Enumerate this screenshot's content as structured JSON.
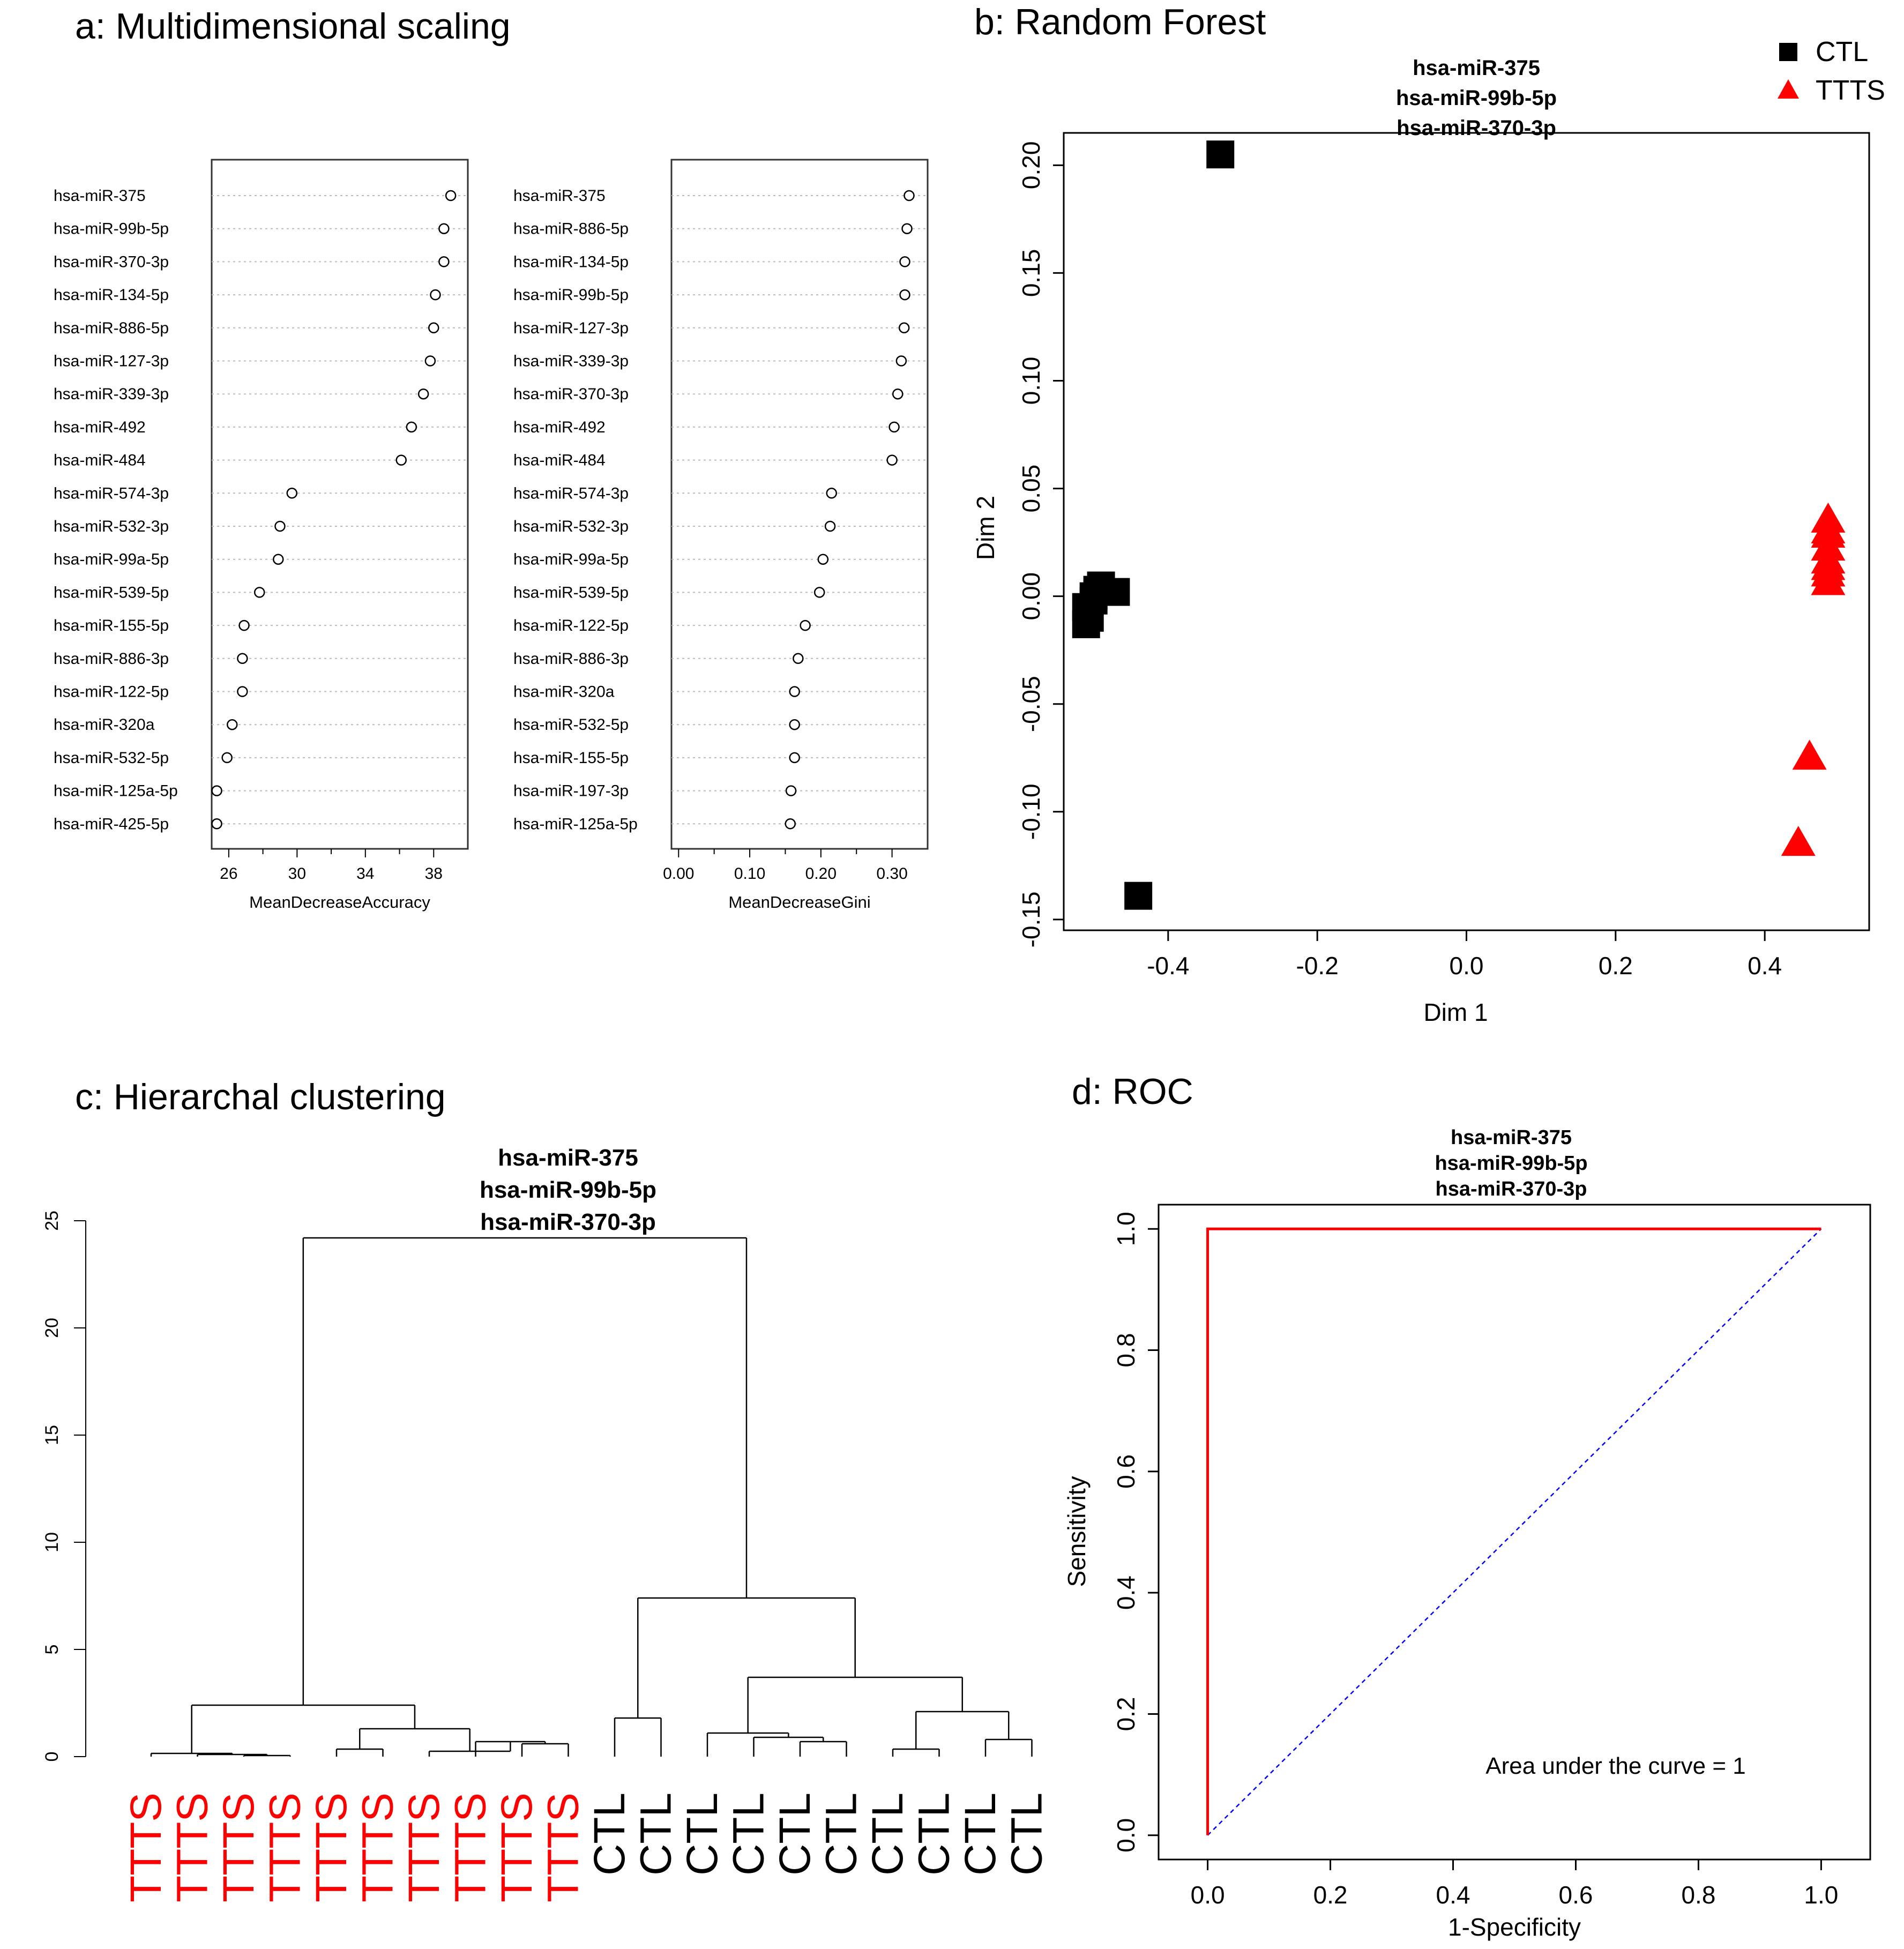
{
  "panels": {
    "a": {
      "title": "a: Multidimensional scaling"
    },
    "b": {
      "title": "b: Random Forest"
    },
    "c": {
      "title": "c: Hierarchal clustering"
    },
    "d": {
      "title": "d: ROC"
    }
  },
  "chart_data": [
    {
      "id": "a1",
      "type": "dotchart",
      "xlabel": "MeanDecreaseAccuracy",
      "xlim": [
        25,
        40
      ],
      "xticks": [
        26,
        30,
        34,
        38
      ],
      "xtick_labels": [
        "26",
        "30",
        "34",
        "38"
      ],
      "labels": [
        "hsa-miR-375",
        "hsa-miR-99b-5p",
        "hsa-miR-370-3p",
        "hsa-miR-134-5p",
        "hsa-miR-886-5p",
        "hsa-miR-127-3p",
        "hsa-miR-339-3p",
        "hsa-miR-492",
        "hsa-miR-484",
        "hsa-miR-574-3p",
        "hsa-miR-532-3p",
        "hsa-miR-99a-5p",
        "hsa-miR-539-5p",
        "hsa-miR-155-5p",
        "hsa-miR-886-3p",
        "hsa-miR-122-5p",
        "hsa-miR-320a",
        "hsa-miR-532-5p",
        "hsa-miR-125a-5p",
        "hsa-miR-425-5p"
      ],
      "values": [
        39.0,
        38.6,
        38.6,
        38.1,
        38.0,
        37.8,
        37.4,
        36.7,
        36.1,
        29.7,
        29.0,
        28.9,
        27.8,
        26.9,
        26.8,
        26.8,
        26.2,
        25.9,
        25.3,
        25.3
      ]
    },
    {
      "id": "a2",
      "type": "dotchart",
      "xlabel": "MeanDecreaseGini",
      "xlim": [
        -0.01,
        0.35
      ],
      "xticks": [
        0.0,
        0.1,
        0.2,
        0.3
      ],
      "xtick_labels": [
        "0.00",
        "0.10",
        "0.20",
        "0.30"
      ],
      "labels": [
        "hsa-miR-375",
        "hsa-miR-886-5p",
        "hsa-miR-134-5p",
        "hsa-miR-99b-5p",
        "hsa-miR-127-3p",
        "hsa-miR-339-3p",
        "hsa-miR-370-3p",
        "hsa-miR-492",
        "hsa-miR-484",
        "hsa-miR-574-3p",
        "hsa-miR-532-3p",
        "hsa-miR-99a-5p",
        "hsa-miR-539-5p",
        "hsa-miR-122-5p",
        "hsa-miR-886-3p",
        "hsa-miR-320a",
        "hsa-miR-532-5p",
        "hsa-miR-155-5p",
        "hsa-miR-197-3p",
        "hsa-miR-125a-5p"
      ],
      "values": [
        0.324,
        0.321,
        0.318,
        0.318,
        0.317,
        0.313,
        0.308,
        0.303,
        0.3,
        0.215,
        0.213,
        0.203,
        0.198,
        0.178,
        0.168,
        0.163,
        0.163,
        0.163,
        0.158,
        0.157
      ]
    },
    {
      "id": "b",
      "type": "scatter",
      "title_lines": [
        "hsa-miR-375",
        "hsa-miR-99b-5p",
        "hsa-miR-370-3p"
      ],
      "xlabel": "Dim 1",
      "ylabel": "Dim 2",
      "xlim": [
        -0.54,
        0.54
      ],
      "ylim": [
        -0.155,
        0.215
      ],
      "xticks": [
        -0.4,
        -0.2,
        0.0,
        0.2,
        0.4
      ],
      "xtick_labels": [
        "-0.4",
        "-0.2",
        "0.0",
        "0.2",
        "0.4"
      ],
      "yticks": [
        -0.15,
        -0.1,
        -0.05,
        0.0,
        0.05,
        0.1,
        0.15,
        0.2
      ],
      "ytick_labels": [
        "-0.15",
        "-0.10",
        "-0.05",
        "0.00",
        "0.05",
        "0.10",
        "0.15",
        "0.20"
      ],
      "legend": [
        {
          "label": "CTL",
          "color": "#000000",
          "marker": "square"
        },
        {
          "label": "TTTS",
          "color": "#ff0000",
          "marker": "triangle"
        }
      ],
      "series": [
        {
          "name": "CTL",
          "color": "#000000",
          "marker": "square",
          "points": [
            [
              -0.33,
              0.205
            ],
            [
              -0.49,
              0.005
            ],
            [
              -0.47,
              0.002
            ],
            [
              -0.5,
              0.0
            ],
            [
              -0.51,
              -0.005
            ],
            [
              -0.505,
              -0.01
            ],
            [
              -0.51,
              -0.013
            ],
            [
              -0.5,
              -0.002
            ],
            [
              -0.495,
              0.003
            ],
            [
              -0.44,
              -0.139
            ]
          ]
        },
        {
          "name": "TTTS",
          "color": "#ff0000",
          "marker": "triangle",
          "points": [
            [
              0.485,
              0.035
            ],
            [
              0.485,
              0.028
            ],
            [
              0.485,
              0.022
            ],
            [
              0.485,
              0.016
            ],
            [
              0.485,
              0.01
            ],
            [
              0.485,
              0.006
            ],
            [
              0.485,
              0.03
            ],
            [
              0.485,
              0.013
            ],
            [
              0.46,
              -0.075
            ],
            [
              0.445,
              -0.115
            ]
          ]
        }
      ]
    },
    {
      "id": "c",
      "type": "dendrogram",
      "title_lines": [
        "hsa-miR-375",
        "hsa-miR-99b-5p",
        "hsa-miR-370-3p"
      ],
      "ylim": [
        0,
        25
      ],
      "yticks": [
        0,
        5,
        10,
        15,
        20,
        25
      ],
      "ytick_labels": [
        "0",
        "5",
        "10",
        "15",
        "20",
        "25"
      ],
      "leaves": [
        "TTTS",
        "TTTS",
        "TTTS",
        "TTTS",
        "TTTS",
        "TTTS",
        "TTTS",
        "TTTS",
        "TTTS",
        "TTTS",
        "CTL",
        "CTL",
        "CTL",
        "CTL",
        "CTL",
        "CTL",
        "CTL",
        "CTL",
        "CTL",
        "CTL"
      ],
      "leaf_colors": [
        "#ff0000",
        "#ff0000",
        "#ff0000",
        "#ff0000",
        "#ff0000",
        "#ff0000",
        "#ff0000",
        "#ff0000",
        "#ff0000",
        "#ff0000",
        "#000000",
        "#000000",
        "#000000",
        "#000000",
        "#000000",
        "#000000",
        "#000000",
        "#000000",
        "#000000",
        "#000000"
      ],
      "merges": [
        [
          -3,
          -4,
          0.05
        ],
        [
          -2,
          1,
          0.1
        ],
        [
          -1,
          2,
          0.15
        ],
        [
          -9,
          -10,
          0.6
        ],
        [
          -8,
          4,
          0.7
        ],
        [
          -7,
          5,
          0.25
        ],
        [
          -5,
          -6,
          0.35
        ],
        [
          7,
          6,
          1.3
        ],
        [
          3,
          8,
          2.4
        ],
        [
          -11,
          -12,
          1.8
        ],
        [
          -15,
          -16,
          0.7
        ],
        [
          -14,
          11,
          0.9
        ],
        [
          -13,
          12,
          1.1
        ],
        [
          -17,
          -18,
          0.35
        ],
        [
          -19,
          -20,
          0.8
        ],
        [
          14,
          15,
          2.1
        ],
        [
          13,
          16,
          3.7
        ],
        [
          10,
          17,
          7.4
        ],
        [
          9,
          18,
          24.2
        ]
      ]
    },
    {
      "id": "d",
      "type": "roc",
      "title_lines": [
        "hsa-miR-375",
        "hsa-miR-99b-5p",
        "hsa-miR-370-3p"
      ],
      "xlabel": "1-Specificity",
      "ylabel": "Sensitivity",
      "xlim": [
        -0.08,
        1.08
      ],
      "ylim": [
        -0.04,
        1.04
      ],
      "xticks": [
        0.0,
        0.2,
        0.4,
        0.6,
        0.8,
        1.0
      ],
      "xtick_labels": [
        "0.0",
        "0.2",
        "0.4",
        "0.6",
        "0.8",
        "1.0"
      ],
      "yticks": [
        0.0,
        0.2,
        0.4,
        0.6,
        0.8,
        1.0
      ],
      "ytick_labels": [
        "0.0",
        "0.2",
        "0.4",
        "0.6",
        "0.8",
        "1.0"
      ],
      "x": [
        0.0,
        0.0,
        1.0
      ],
      "y": [
        0.0,
        1.0,
        1.0
      ],
      "diagonal": [
        [
          0,
          0
        ],
        [
          1,
          1
        ]
      ],
      "annotation": "Area under the curve = 1",
      "curve_color": "#ff0000",
      "diagonal_color": "#0000ff"
    }
  ]
}
